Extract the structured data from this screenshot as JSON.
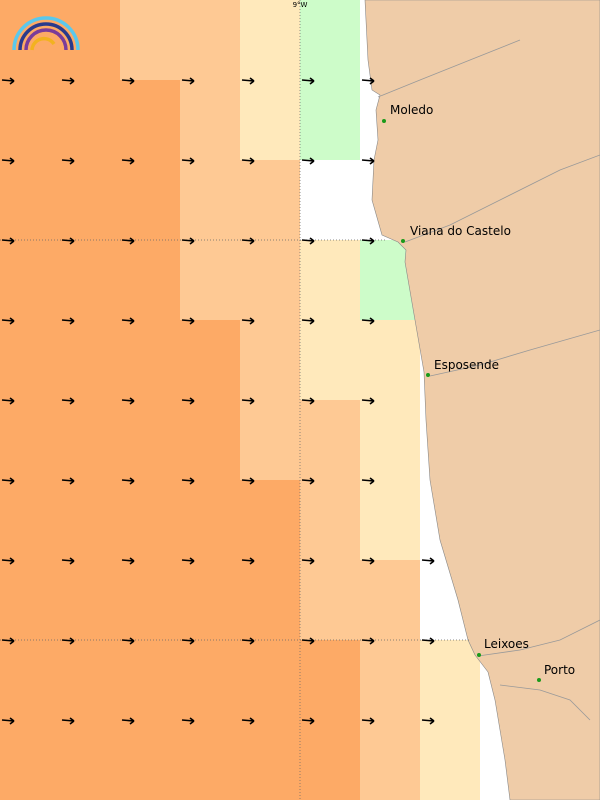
{
  "map": {
    "meridian_label": "9°W",
    "places": [
      {
        "name": "Moledo"
      },
      {
        "name": "Viana do Castelo"
      },
      {
        "name": "Esposende"
      },
      {
        "name": "Leixoes"
      },
      {
        "name": "Porto"
      }
    ]
  }
}
